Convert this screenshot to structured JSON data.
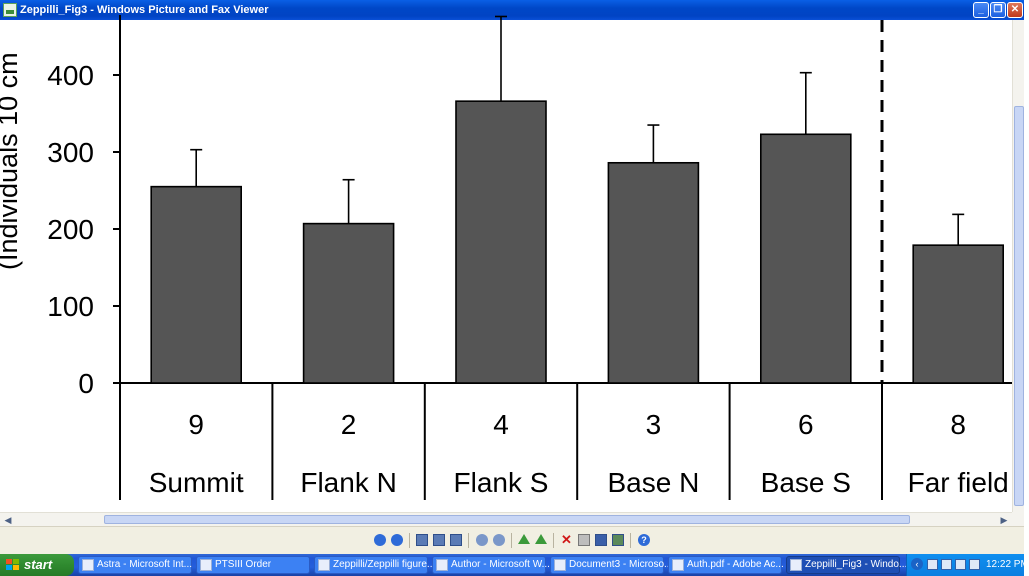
{
  "window": {
    "title": "Zeppilli_Fig3 - Windows Picture and Fax Viewer",
    "minimize_label": "_",
    "maximize_label": "❐",
    "close_label": "✕"
  },
  "chart_data": {
    "type": "bar",
    "ylabel": "(Individuals 10 cm",
    "yticks": [
      0,
      100,
      200,
      300,
      400
    ],
    "ylim": [
      0,
      480
    ],
    "categories": [
      "Summit",
      "Flank N",
      "Flank S",
      "Base N",
      "Base S",
      "Far field"
    ],
    "counts": [
      "9",
      "2",
      "4",
      "3",
      "6",
      "8"
    ],
    "values": [
      255,
      207,
      366,
      286,
      323,
      179
    ],
    "errors": [
      48,
      57,
      110,
      49,
      80,
      40
    ],
    "divider_after_category": "Base S",
    "bar_color": "#555555",
    "grid": false
  },
  "toolbar": {
    "icons": [
      "previous-image-icon",
      "next-image-icon",
      "best-fit-icon",
      "actual-size-icon",
      "slideshow-icon",
      "zoom-in-icon",
      "zoom-out-icon",
      "rotate-clockwise-icon",
      "rotate-counterclockwise-icon",
      "delete-icon",
      "print-icon",
      "save-icon",
      "open-editor-icon",
      "help-icon"
    ]
  },
  "taskbar": {
    "start_label": "start",
    "tasks": [
      {
        "label": "Astra - Microsoft Int...",
        "active": false
      },
      {
        "label": "PTSIII Order",
        "active": false
      },
      {
        "label": "Zeppilli/Zeppilli figure...",
        "active": false
      },
      {
        "label": "Author - Microsoft W...",
        "active": false
      },
      {
        "label": "Document3 - Microso...",
        "active": false
      },
      {
        "label": "Auth.pdf - Adobe Ac...",
        "active": false
      },
      {
        "label": "Zeppilli_Fig3 - Windo...",
        "active": true
      }
    ],
    "tray_chevron": "‹",
    "clock": "12:22 PM"
  }
}
